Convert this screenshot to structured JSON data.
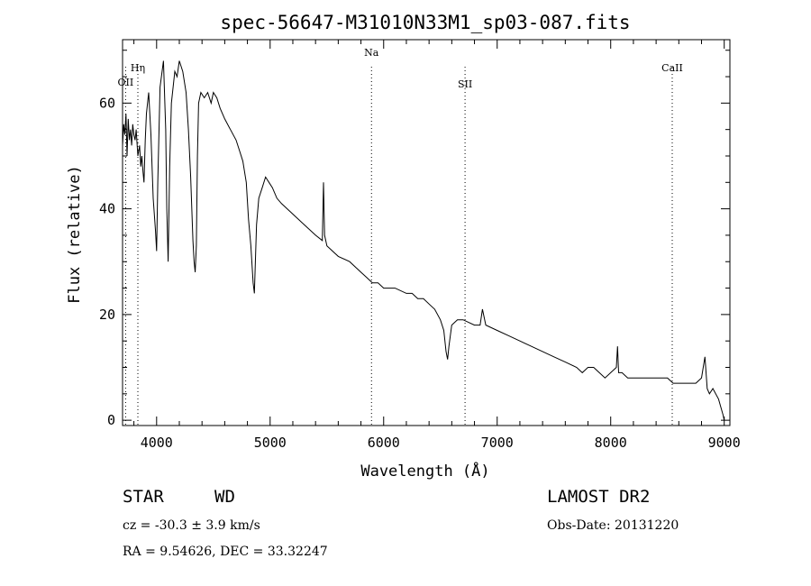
{
  "footer": {
    "obj_class": "STAR",
    "subclass": "WD",
    "survey": "LAMOST DR2",
    "redshift_line": "cz = -30.3 ± 3.9 km/s",
    "obs_date_line": "Obs-Date: 20131220",
    "coords_line": "RA =   9.54626, DEC =  33.32247"
  },
  "chart_data": {
    "type": "line",
    "title": "spec-56647-M31010N33M1_sp03-087.fits",
    "xlabel": "Wavelength (Å)",
    "ylabel": "Flux (relative)",
    "xlim": [
      3700,
      9050
    ],
    "ylim": [
      -1,
      72
    ],
    "xticks": [
      4000,
      5000,
      6000,
      7000,
      8000,
      9000
    ],
    "yticks": [
      0,
      20,
      40,
      60
    ],
    "line_color": "#000000",
    "grid": false,
    "line_markers": [
      {
        "label": "OII",
        "x": 3727
      },
      {
        "label": "Hη",
        "x": 3835
      },
      {
        "label": "Na",
        "x": 5893
      },
      {
        "label": "SII",
        "x": 6717
      },
      {
        "label": "CaII",
        "x": 8542
      }
    ],
    "series": [
      {
        "x": [
          3700,
          3710,
          3720,
          3730,
          3740,
          3750,
          3760,
          3770,
          3780,
          3790,
          3800,
          3810,
          3820,
          3835,
          3850,
          3860,
          3870,
          3880,
          3889,
          3900,
          3910,
          3930,
          3950,
          3970,
          3990,
          4000,
          4010,
          4030,
          4060,
          4080,
          4090,
          4102,
          4115,
          4130,
          4160,
          4180,
          4200,
          4230,
          4260,
          4280,
          4300,
          4320,
          4330,
          4340,
          4350,
          4360,
          4370,
          4390,
          4420,
          4450,
          4480,
          4500,
          4530,
          4560,
          4600,
          4650,
          4700,
          4730,
          4760,
          4790,
          4810,
          4830,
          4850,
          4861,
          4870,
          4880,
          4900,
          4930,
          4960,
          4990,
          5020,
          5060,
          5100,
          5200,
          5300,
          5400,
          5460,
          5470,
          5480,
          5500,
          5600,
          5700,
          5750,
          5800,
          5850,
          5900,
          5950,
          6000,
          6100,
          6200,
          6250,
          6300,
          6350,
          6400,
          6450,
          6500,
          6530,
          6550,
          6563,
          6575,
          6600,
          6650,
          6700,
          6800,
          6850,
          6870,
          6900,
          7000,
          7100,
          7200,
          7300,
          7400,
          7500,
          7600,
          7700,
          7750,
          7800,
          7850,
          7900,
          7950,
          8000,
          8050,
          8060,
          8070,
          8100,
          8150,
          8200,
          8300,
          8400,
          8500,
          8550,
          8600,
          8700,
          8750,
          8800,
          8830,
          8850,
          8870,
          8900,
          8950,
          8990,
          9000
        ],
        "y": [
          52,
          56,
          54,
          58,
          50,
          57,
          53,
          55,
          52,
          56,
          54,
          53,
          55,
          50,
          52,
          48,
          50,
          47,
          45,
          53,
          58,
          62,
          54,
          42,
          36,
          32,
          45,
          63,
          68,
          55,
          40,
          30,
          48,
          60,
          66,
          65,
          68,
          66,
          62,
          55,
          46,
          34,
          30,
          28,
          33,
          50,
          60,
          62,
          61,
          62,
          60,
          62,
          61,
          59,
          57,
          55,
          53,
          51,
          49,
          45,
          38,
          33,
          26,
          24,
          30,
          37,
          42,
          44,
          46,
          45,
          44,
          42,
          41,
          39,
          37,
          35,
          34,
          45,
          35,
          33,
          31,
          30,
          29,
          28,
          27,
          26,
          26,
          25,
          25,
          24,
          24,
          23,
          23,
          22,
          21,
          19,
          17,
          13,
          11.5,
          14,
          18,
          19,
          19,
          18,
          18,
          21,
          18,
          17,
          16,
          15,
          14,
          13,
          12,
          11,
          10,
          9,
          10,
          10,
          9,
          8,
          9,
          10,
          14,
          9,
          9,
          8,
          8,
          8,
          8,
          8,
          7,
          7,
          7,
          7,
          8,
          12,
          6,
          5,
          6,
          4,
          1,
          0
        ]
      }
    ]
  }
}
